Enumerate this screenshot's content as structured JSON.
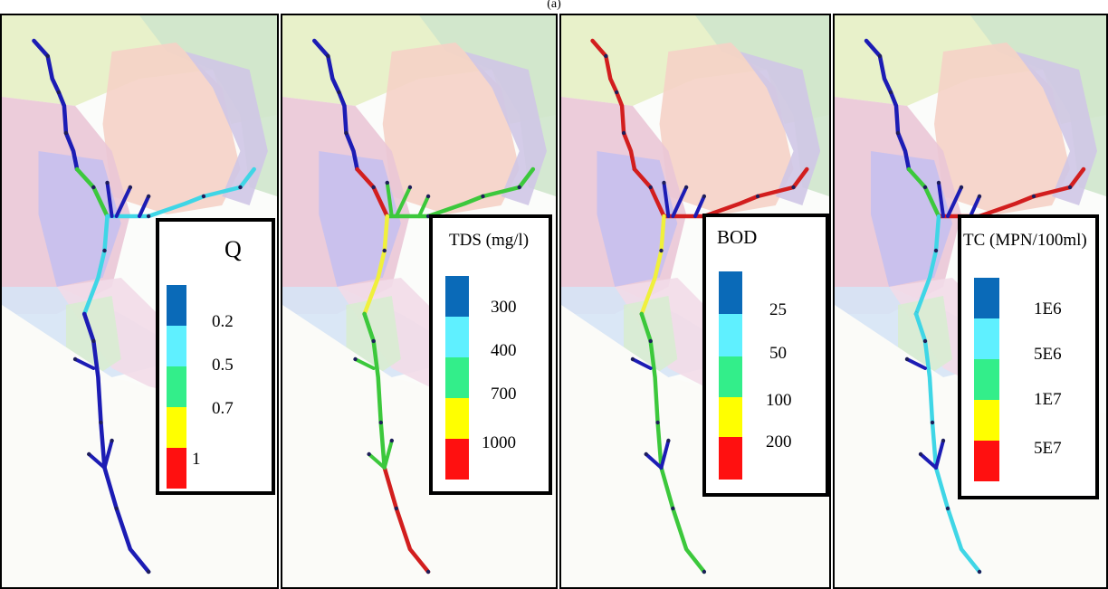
{
  "figure_label": "(a)",
  "colors": {
    "blue": "#0a6ab8",
    "cyan": "#5ff0ff",
    "green": "#33ee8a",
    "yellow": "#ffff00",
    "red": "#ff1010",
    "river_blue": "#1c1cb4",
    "river_cyan": "#3fd6e6",
    "river_green": "#3cc83c",
    "river_yellow": "#f0f03c",
    "river_red": "#d21e1e",
    "node": "#1e1e5a"
  },
  "panels": [
    {
      "parameter": "Q",
      "legend": {
        "title": "Q",
        "labels": [
          "0.2",
          "0.5",
          "0.7",
          "1"
        ]
      },
      "segments": {
        "north": "river_blue",
        "upper": "river_green",
        "east": "river_cyan",
        "middle": "river_cyan",
        "lower": "river_blue",
        "tail": "river_blue",
        "tributaries": "river_blue"
      }
    },
    {
      "parameter": "TDS",
      "legend": {
        "title": "TDS (mg/l)",
        "labels": [
          "300",
          "400",
          "700",
          "1000"
        ]
      },
      "segments": {
        "north": "river_blue",
        "upper": "river_red",
        "east": "river_green",
        "middle": "river_yellow",
        "lower": "river_green",
        "tail": "river_red",
        "tributaries": "river_green"
      }
    },
    {
      "parameter": "BOD",
      "legend": {
        "title": "BOD",
        "labels": [
          "25",
          "50",
          "100",
          "200"
        ]
      },
      "segments": {
        "north": "river_red",
        "upper": "river_red",
        "east": "river_red",
        "middle": "river_yellow",
        "lower": "river_green",
        "tail": "river_green",
        "tributaries": "river_blue"
      }
    },
    {
      "parameter": "TC",
      "legend": {
        "title": "TC (MPN/100ml)",
        "labels": [
          "1E6",
          "5E6",
          "1E7",
          "5E7"
        ]
      },
      "segments": {
        "north": "river_blue",
        "upper": "river_green",
        "east": "river_red",
        "middle": "river_cyan",
        "lower": "river_cyan",
        "tail": "river_cyan",
        "tributaries": "river_blue"
      }
    }
  ]
}
